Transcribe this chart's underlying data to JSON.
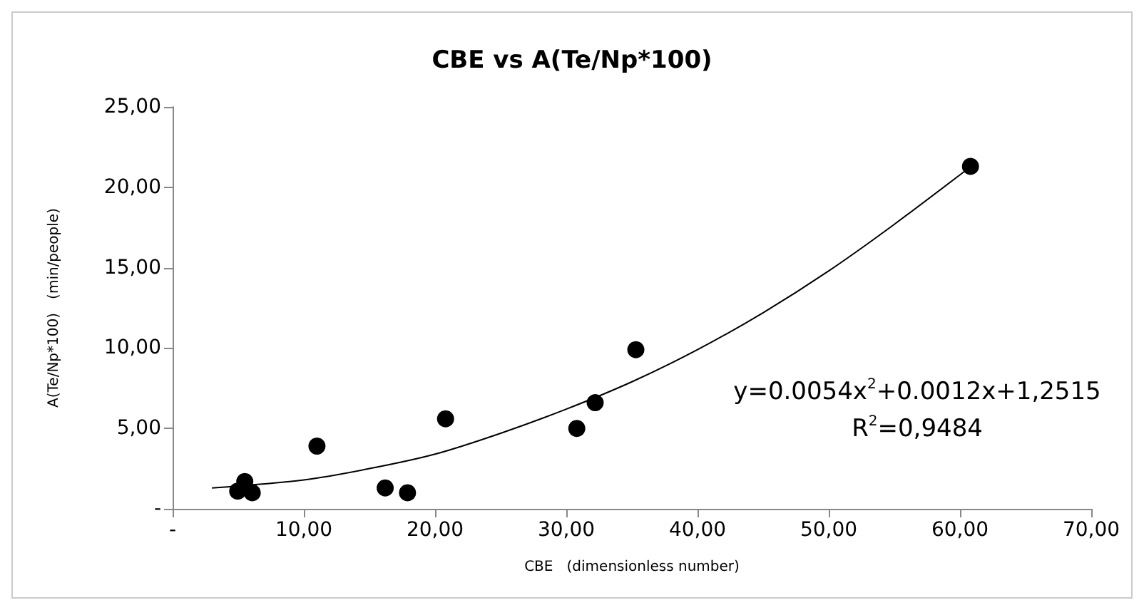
{
  "chart_data": {
    "type": "scatter",
    "title": "CBE vs A(Te/Np*100)",
    "xlabel": "CBE   (dimensionless number)",
    "ylabel": "A(Te/Np*100)   (min/people)",
    "x": [
      4.96,
      5.5,
      6.07,
      11.0,
      16.2,
      17.9,
      20.8,
      30.8,
      32.2,
      35.3,
      60.8
    ],
    "series": [
      {
        "type": "scatter",
        "color": "#000000",
        "marker": "circle",
        "values": [
          1.1,
          1.7,
          1.0,
          3.9,
          1.3,
          1.0,
          5.6,
          5.0,
          6.6,
          9.9,
          21.3
        ]
      },
      {
        "type": "line",
        "color": "#000000",
        "marker": "none",
        "x": [
          3,
          10,
          15,
          20,
          25,
          30,
          35,
          40,
          45,
          50,
          55,
          61
        ],
        "values": [
          1.3,
          1.8,
          2.5,
          3.4,
          4.7,
          6.2,
          7.9,
          9.9,
          12.2,
          14.8,
          17.7,
          21.4
        ]
      }
    ],
    "xlim": [
      0,
      70
    ],
    "xticks": [
      {
        "value": 0,
        "label": "-"
      },
      {
        "value": 10,
        "label": "10,00"
      },
      {
        "value": 20,
        "label": "20,00"
      },
      {
        "value": 30,
        "label": "30,00"
      },
      {
        "value": 40,
        "label": "40,00"
      },
      {
        "value": 50,
        "label": "50,00"
      },
      {
        "value": 60,
        "label": "60,00"
      },
      {
        "value": 70,
        "label": "70,00"
      }
    ],
    "ylim": [
      0,
      25
    ],
    "yticks": [
      {
        "value": 0,
        "label": "-"
      },
      {
        "value": 5,
        "label": "5,00"
      },
      {
        "value": 10,
        "label": "10,00"
      },
      {
        "value": 15,
        "label": "15,00"
      },
      {
        "value": 20,
        "label": "20,00"
      },
      {
        "value": 25,
        "label": "25,00"
      }
    ],
    "annotations": [
      "y=0.0054x$^{2}$+0.0012x+1,2515",
      "R$^{2}$=0,9484"
    ],
    "grid": false
  }
}
